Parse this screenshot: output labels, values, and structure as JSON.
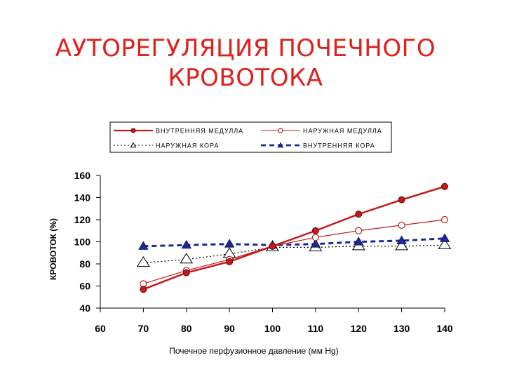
{
  "title": "АУТОРЕГУЛЯЦИЯ   ПОЧЕЧНОГО\nКРОВОТОКА",
  "chart_data": {
    "type": "line",
    "title": "АУТОРЕГУЛЯЦИЯ   ПОЧЕЧНОГО КРОВОТОКА",
    "xlabel": "Почечное   перфузионное   давление (мм Hg)",
    "ylabel": "КРОВОТОК (%)",
    "xlim": [
      60,
      140
    ],
    "ylim": [
      40,
      160
    ],
    "x_ticks": [
      60,
      70,
      80,
      90,
      100,
      110,
      120,
      130,
      140
    ],
    "y_ticks": [
      40,
      60,
      80,
      100,
      120,
      140,
      160
    ],
    "grid": false,
    "legend_position": "top",
    "series": [
      {
        "name": "ВНУТРЕННЯЯ МЕДУЛЛА",
        "color": "#c41a1a",
        "line": "solid-thick",
        "marker": "circle-filled",
        "x": [
          70,
          80,
          90,
          100,
          110,
          120,
          130,
          140
        ],
        "values": [
          57,
          72,
          82,
          96,
          110,
          125,
          138,
          150
        ]
      },
      {
        "name": "НАРУЖНАЯ МЕДУЛЛА",
        "color": "#c41a1a",
        "line": "solid-thin",
        "marker": "circle-open",
        "x": [
          70,
          80,
          90,
          100,
          110,
          120,
          130,
          140
        ],
        "values": [
          62,
          74,
          84,
          96,
          104,
          110,
          115,
          120
        ]
      },
      {
        "name": "НАРУЖНАЯ КОРА",
        "color": "#000000",
        "line": "dotted",
        "marker": "triangle-open",
        "x": [
          70,
          80,
          90,
          100,
          110,
          120,
          130,
          140
        ],
        "values": [
          81,
          84,
          89,
          95,
          95,
          96,
          96,
          97
        ]
      },
      {
        "name": "ВНУТРЕННЯЯ КОРА",
        "color": "#1a2a9c",
        "line": "dashed-thick",
        "marker": "triangle-filled",
        "x": [
          70,
          80,
          90,
          100,
          110,
          120,
          130,
          140
        ],
        "values": [
          96,
          97,
          98,
          97,
          98,
          100,
          101,
          103
        ]
      }
    ]
  }
}
